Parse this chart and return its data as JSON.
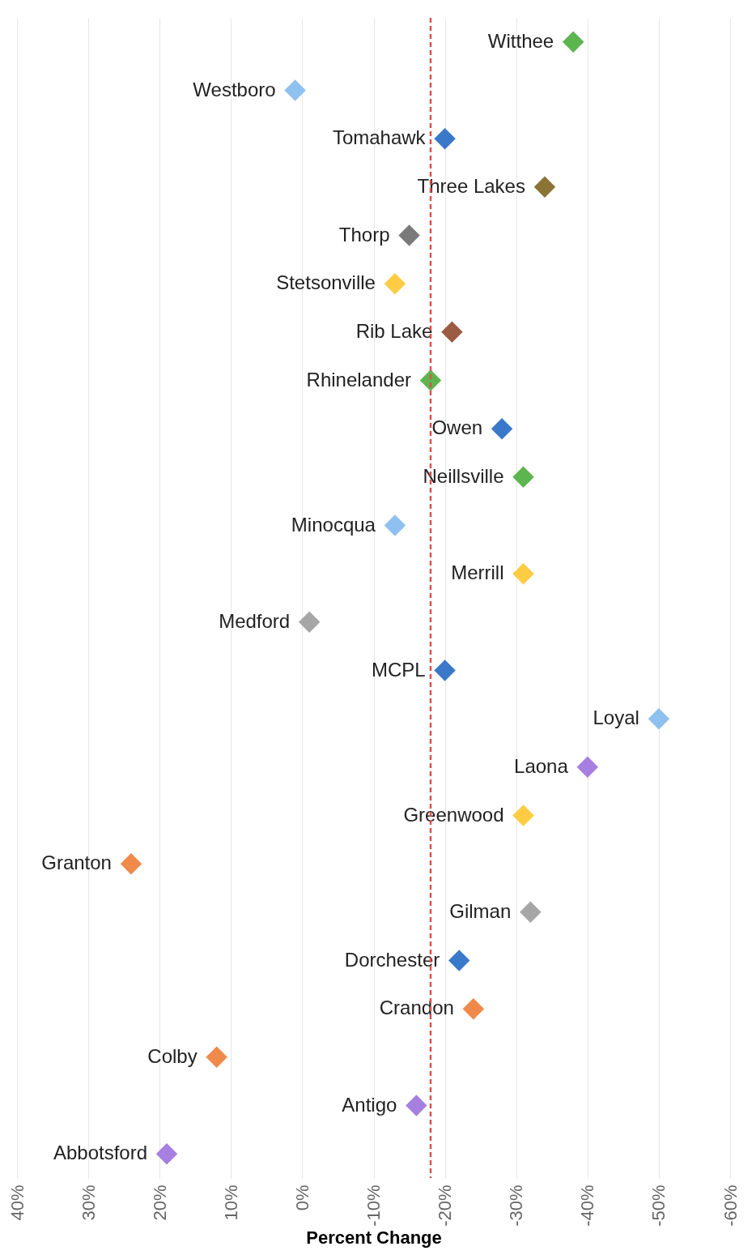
{
  "chart_data": {
    "type": "scatter",
    "orientation": "horizontal",
    "xlabel": "Percent Change",
    "categories": [
      "Witthee",
      "Westboro",
      "Tomahawk",
      "Three Lakes",
      "Thorp",
      "Stetsonville",
      "Rib Lake",
      "Rhinelander",
      "Owen",
      "Neillsville",
      "Minocqua",
      "Merrill",
      "Medford",
      "MCPL",
      "Loyal",
      "Laona",
      "Greenwood",
      "Granton",
      "Gilman",
      "Dorchester",
      "Crandon",
      "Colby",
      "Antigo",
      "Abbotsford"
    ],
    "values": [
      -38,
      1,
      -20,
      -34,
      -15,
      -13,
      -21,
      -18,
      -28,
      -31,
      -13,
      -31,
      -1,
      -20,
      -50,
      -40,
      -31,
      24,
      -32,
      -22,
      -24,
      12,
      -16,
      19
    ],
    "colors": [
      "#5cb54f",
      "#8fc1f0",
      "#3a78c9",
      "#8a7436",
      "#7a7a7a",
      "#ffcc44",
      "#9a5c43",
      "#5cb54f",
      "#3a78c9",
      "#5cb54f",
      "#8fc1f0",
      "#ffcc44",
      "#a6a6a6",
      "#3a78c9",
      "#8fc1f0",
      "#a77fe0",
      "#ffcc44",
      "#ef8a4b",
      "#a6a6a6",
      "#3a78c9",
      "#ef8a4b",
      "#ef8a4b",
      "#a77fe0",
      "#a77fe0"
    ],
    "xlim": [
      40,
      -60
    ],
    "xticks": [
      {
        "value": 40,
        "label": "40%"
      },
      {
        "value": 30,
        "label": "30%"
      },
      {
        "value": 20,
        "label": "20%"
      },
      {
        "value": 10,
        "label": "10%"
      },
      {
        "value": 0,
        "label": "0%"
      },
      {
        "value": -10,
        "label": "-10%"
      },
      {
        "value": -20,
        "label": "-20%"
      },
      {
        "value": -30,
        "label": "-30%"
      },
      {
        "value": -40,
        "label": "-40%"
      },
      {
        "value": -50,
        "label": "-50%"
      },
      {
        "value": -60,
        "label": "-60%"
      }
    ],
    "ref_lines": [
      {
        "axis": "x",
        "value": -18,
        "color": "#d9534f",
        "line_style": "dashed"
      }
    ],
    "grid": "x",
    "marker": "diamond",
    "tick_labels": "x"
  }
}
